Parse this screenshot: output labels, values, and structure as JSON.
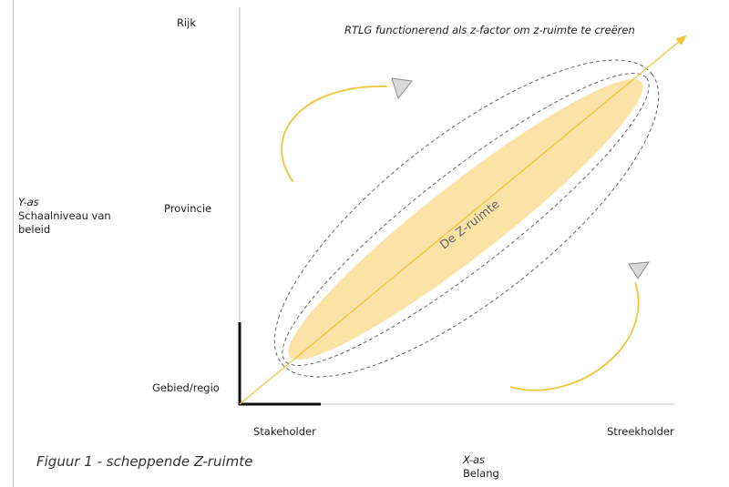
{
  "title": "RTLG functionerend als z-factor om z-ruimte te creëren",
  "y_axis": {
    "name": "Y-as",
    "description_line1": "Schaalniveau van",
    "description_line2": "beleid",
    "ticks": [
      "Rijk",
      "Provincie",
      "Gebied/regio"
    ]
  },
  "x_axis": {
    "name": "X-as",
    "description": "Belang",
    "ticks": [
      "Stakeholder",
      "Streekholder"
    ]
  },
  "center_label": "De Z-ruimte",
  "caption": "Figuur 1 - scheppende Z-ruimte",
  "colors": {
    "zone_fill": "#fbe2a6",
    "arrow": "#f2c437",
    "dashed": "#666666",
    "axis": "#bfbfbf",
    "corner": "#111111"
  }
}
